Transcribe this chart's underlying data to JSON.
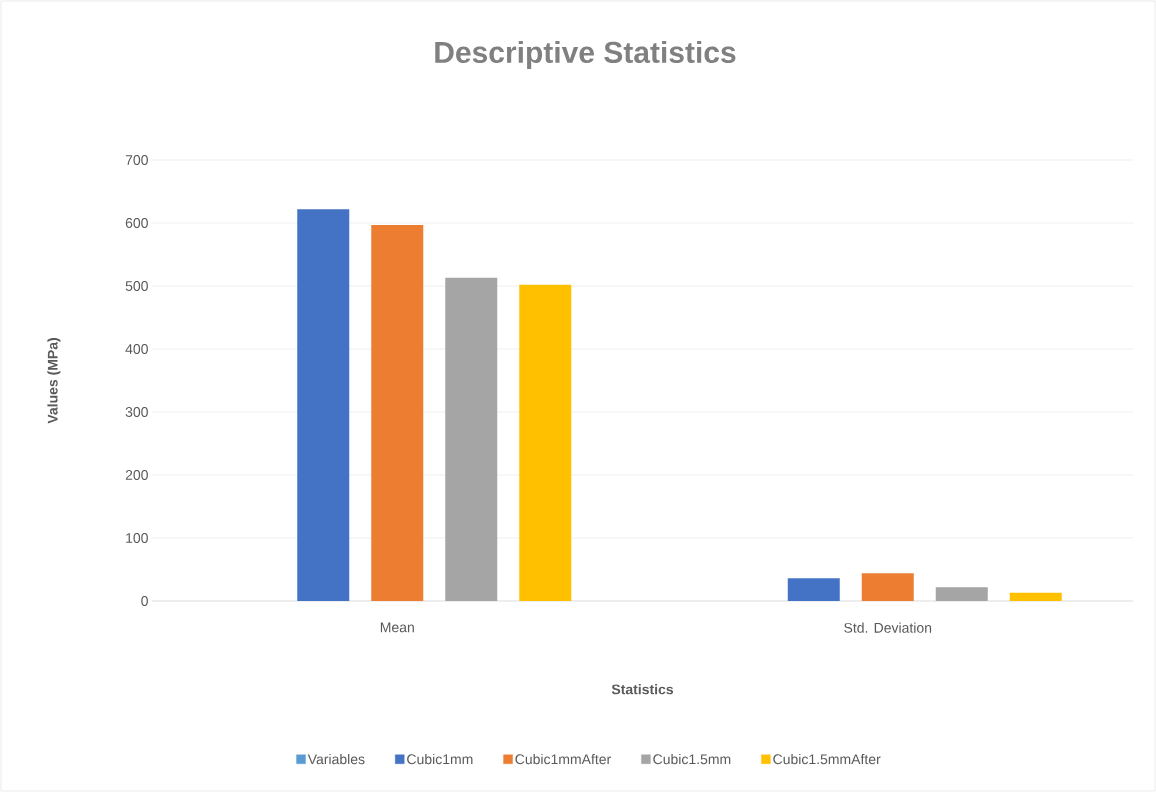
{
  "chart_data": {
    "type": "bar",
    "title": "Descriptive Statistics",
    "xlabel": "Statistics",
    "ylabel": "Values (MPa)",
    "categories": [
      "Mean",
      "Std. Deviation"
    ],
    "series": [
      {
        "name": "Variables",
        "color": "#5b9bd5",
        "values": [
          null,
          null
        ]
      },
      {
        "name": "Cubic1mm",
        "color": "#4472c4",
        "values": [
          622,
          36
        ]
      },
      {
        "name": "Cubic1mmAfter",
        "color": "#ed7d31",
        "values": [
          597,
          44
        ]
      },
      {
        "name": "Cubic1.5mm",
        "color": "#a5a5a5",
        "values": [
          513,
          22
        ]
      },
      {
        "name": "Cubic1.5mmAfter",
        "color": "#ffc000",
        "values": [
          502,
          13
        ]
      }
    ],
    "ylim": [
      0,
      700
    ],
    "yticks": [
      0,
      100,
      200,
      300,
      400,
      500,
      600,
      700
    ],
    "grid": "y",
    "legend": "bottom"
  }
}
